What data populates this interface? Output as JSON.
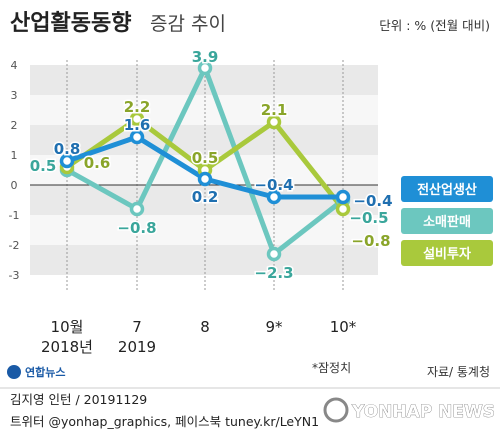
{
  "title": "산업활동동향",
  "subtitle": "증감 추이",
  "unit": "단위 : % (전월 대비)",
  "note": "*잠정치",
  "source": "자료/ 통계청",
  "brand": "연합뉴스",
  "credit_line1": "김지영 인턴 / 20191129",
  "credit_line2": "트위터 @yonhap_graphics, 페이스북 tuney.kr/LeYN1",
  "watermark": "YONHAP NEWS",
  "chart_data": {
    "type": "line",
    "categories": [
      "10월",
      "7",
      "8",
      "9*",
      "10*"
    ],
    "category_sublabels": [
      "2018년",
      "2019",
      "",
      "",
      ""
    ],
    "y_ticks": [
      "4",
      "3",
      "2",
      "1",
      "0",
      "-1",
      "-2",
      "-3"
    ],
    "ylim": [
      -3.5,
      4.5
    ],
    "series": [
      {
        "name": "전산업생산",
        "values": [
          0.8,
          1.6,
          0.2,
          -0.4,
          -0.4
        ],
        "labels": [
          "0.8",
          "1.6",
          "0.2",
          "-0.4",
          "-0.4"
        ],
        "color": "#1f8fd6"
      },
      {
        "name": "소매판매",
        "values": [
          0.5,
          -0.8,
          3.9,
          -2.3,
          -0.5
        ],
        "labels": [
          "0.5",
          "-0.8",
          "3.9",
          "-2.3",
          "-0.5"
        ],
        "color": "#6cc7bf"
      },
      {
        "name": "설비투자",
        "values": [
          0.6,
          2.2,
          0.5,
          2.1,
          -0.8
        ],
        "labels": [
          "0.6",
          "2.2",
          "0.5",
          "2.1",
          "-0.8"
        ],
        "color": "#a9c93c"
      }
    ]
  }
}
